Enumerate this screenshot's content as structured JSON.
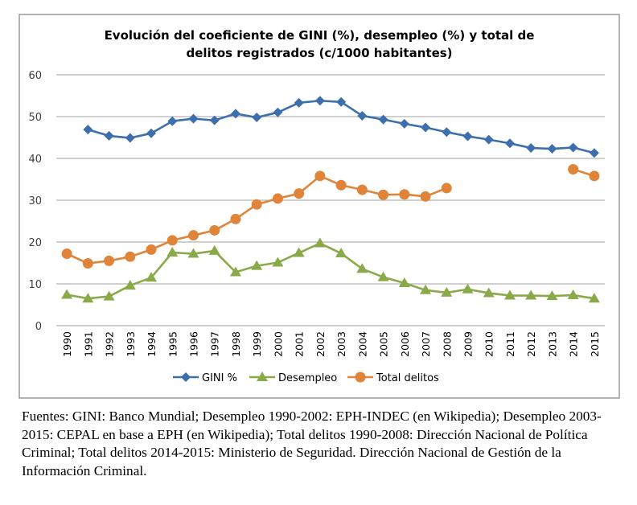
{
  "chart_data": {
    "type": "line",
    "title": "Evolución del coeficiente de GINI (%), desempleo (%) y total de delitos registrados (c/1000 habitantes)",
    "title_lines": [
      "Evolución del coeficiente de GINI (%), desempleo (%) y total de",
      "delitos registrados (c/1000 habitantes)"
    ],
    "xlabel": "",
    "ylabel": "",
    "ylim": [
      0,
      60
    ],
    "yticks": [
      0,
      10,
      20,
      30,
      40,
      50,
      60
    ],
    "grid": true,
    "legend_position": "bottom",
    "categories": [
      "1990",
      "1991",
      "1992",
      "1993",
      "1994",
      "1995",
      "1996",
      "1997",
      "1998",
      "1999",
      "2000",
      "2001",
      "2002",
      "2003",
      "2004",
      "2005",
      "2006",
      "2007",
      "2008",
      "2009",
      "2010",
      "2011",
      "2012",
      "2013",
      "2014",
      "2015"
    ],
    "series": [
      {
        "name": "GINI %",
        "color": "#3d6fae",
        "marker": "diamond",
        "values": [
          null,
          46.9,
          45.4,
          44.9,
          46.0,
          48.9,
          49.5,
          49.1,
          50.7,
          49.8,
          51.0,
          53.3,
          53.8,
          53.5,
          50.2,
          49.3,
          48.3,
          47.4,
          46.3,
          45.3,
          44.5,
          43.6,
          42.5,
          42.3,
          42.6,
          41.3
        ]
      },
      {
        "name": "Desempleo",
        "color": "#8aaa4a",
        "marker": "triangle",
        "values": [
          7.4,
          6.5,
          7.0,
          9.6,
          11.5,
          17.5,
          17.2,
          17.9,
          12.8,
          14.3,
          15.1,
          17.4,
          19.7,
          17.3,
          13.6,
          11.6,
          10.2,
          8.5,
          7.9,
          8.7,
          7.8,
          7.2,
          7.2,
          7.1,
          7.3,
          6.5
        ]
      },
      {
        "name": "Total delitos",
        "color": "#e0843a",
        "marker": "circle",
        "values": [
          17.2,
          14.9,
          15.5,
          16.5,
          18.2,
          20.4,
          21.6,
          22.8,
          25.5,
          29.0,
          30.4,
          31.6,
          35.8,
          33.6,
          32.5,
          31.3,
          31.4,
          30.9,
          32.9,
          null,
          null,
          null,
          null,
          null,
          37.4,
          35.8
        ]
      }
    ]
  },
  "source_note": "Fuentes: GINI: Banco Mundial; Desempleo 1990-2002: EPH-INDEC (en Wikipedia); Desempleo 2003-2015: CEPAL en base a EPH (en Wikipedia); Total delitos 1990-2008: Dirección Nacional de Política Criminal; Total delitos 2014-2015: Ministerio de Seguridad. Dirección Nacional de Gestión de la Información Criminal."
}
